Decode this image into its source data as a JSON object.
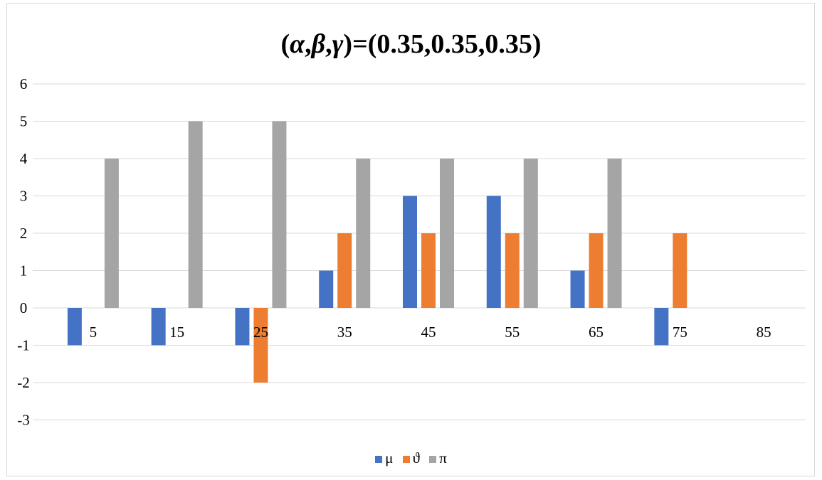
{
  "chart_data": {
    "type": "bar",
    "title_parts": [
      "(",
      "α",
      ",",
      "β",
      ",",
      "γ",
      ")=(0.35,0.35,0.35)"
    ],
    "categories": [
      "5",
      "15",
      "25",
      "35",
      "45",
      "55",
      "65",
      "75",
      "85"
    ],
    "series": [
      {
        "name": "μ",
        "color": "#4472C4",
        "values": [
          -1,
          -1,
          -1,
          1,
          3,
          3,
          1,
          -1,
          0
        ]
      },
      {
        "name": "ϑ",
        "color": "#ED7D31",
        "values": [
          0,
          0,
          -2,
          2,
          2,
          2,
          2,
          2,
          0
        ]
      },
      {
        "name": "π",
        "color": "#A5A5A5",
        "values": [
          4,
          5,
          5,
          4,
          4,
          4,
          4,
          0,
          0
        ]
      }
    ],
    "ylim": [
      -3,
      6
    ],
    "yticks": [
      6,
      5,
      4,
      3,
      2,
      1,
      0,
      -1,
      -2,
      -3
    ],
    "grid": true,
    "legend_position": "bottom"
  }
}
